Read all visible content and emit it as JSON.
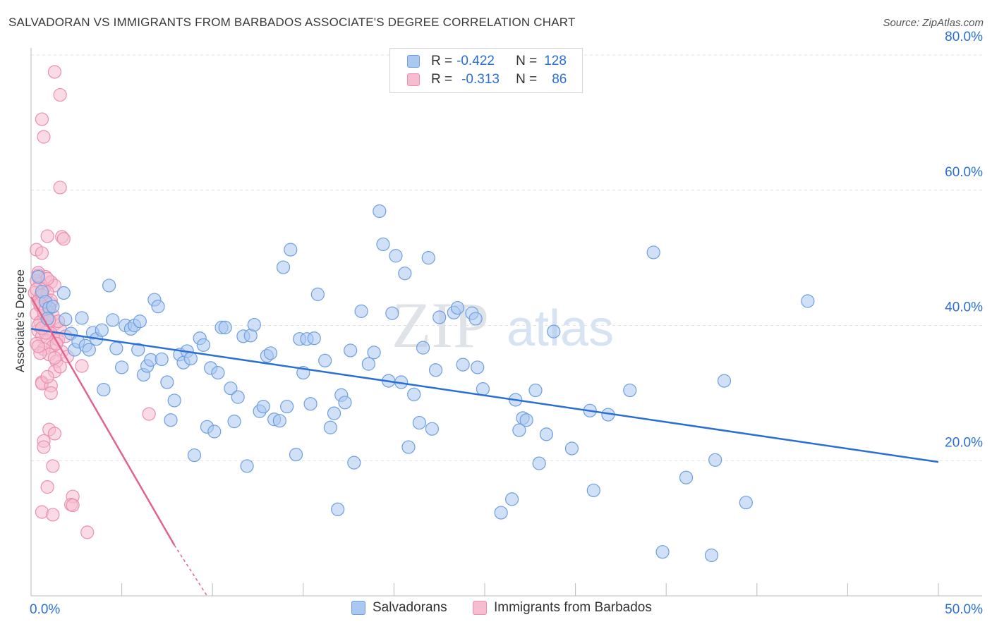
{
  "title": "SALVADORAN VS IMMIGRANTS FROM BARBADOS ASSOCIATE'S DEGREE CORRELATION CHART",
  "source": "Source: ZipAtlas.com",
  "watermark": {
    "zip": "ZIP",
    "atlas": "atlas"
  },
  "colors": {
    "blue_fill": "#aac8f0",
    "blue_stroke": "#6d9ee0",
    "blue_line": "#2a6fd4",
    "pink_fill": "#f6bdd0",
    "pink_stroke": "#ea8fb0",
    "pink_line": "#e0648f",
    "tick_text": "#2a6fd4",
    "grid": "#e2e2e2"
  },
  "legend": {
    "rows": [
      {
        "r_label": "R =",
        "r_value": "-0.422",
        "n_label": "N =",
        "n_value": "128"
      },
      {
        "r_label": "R =",
        "r_value": "-0.313",
        "n_label": "N =",
        "n_value": "86"
      }
    ]
  },
  "bottom_legend": {
    "series1": "Salvadorans",
    "series2": "Immigrants from Barbados"
  },
  "chart_data": {
    "type": "scatter",
    "title": "SALVADORAN VS IMMIGRANTS FROM BARBADOS ASSOCIATE'S DEGREE CORRELATION CHART",
    "xlabel": "",
    "ylabel": "Associate's Degree",
    "xlim": [
      0,
      50
    ],
    "ylim": [
      0,
      80
    ],
    "x_tick_labels": {
      "left": "0.0%",
      "right": "50.0%"
    },
    "y_ticks": [
      {
        "value": 20,
        "label": "20.0%"
      },
      {
        "value": 40,
        "label": "40.0%"
      },
      {
        "value": 60,
        "label": "60.0%"
      },
      {
        "value": 80,
        "label": "80.0%"
      }
    ],
    "series": [
      {
        "name": "Salvadorans",
        "r": -0.422,
        "n": 128,
        "trend": {
          "x0": 0,
          "y0": 39.5,
          "x1": 50,
          "y1": 19.8
        },
        "points": [
          [
            0.4,
            47.2
          ],
          [
            0.6,
            45.0
          ],
          [
            0.8,
            43.5
          ],
          [
            1.0,
            42.6
          ],
          [
            0.9,
            41.0
          ],
          [
            1.8,
            44.8
          ],
          [
            1.2,
            42.8
          ],
          [
            1.9,
            40.9
          ],
          [
            2.2,
            38.8
          ],
          [
            2.4,
            36.4
          ],
          [
            2.8,
            41.1
          ],
          [
            2.6,
            37.6
          ],
          [
            3.0,
            37.0
          ],
          [
            3.2,
            36.4
          ],
          [
            3.4,
            38.9
          ],
          [
            3.6,
            38.0
          ],
          [
            3.9,
            39.3
          ],
          [
            4.0,
            30.5
          ],
          [
            4.3,
            45.9
          ],
          [
            4.5,
            40.8
          ],
          [
            4.7,
            36.6
          ],
          [
            5.0,
            33.8
          ],
          [
            5.2,
            40.0
          ],
          [
            5.5,
            39.5
          ],
          [
            5.7,
            40.0
          ],
          [
            5.9,
            36.4
          ],
          [
            6.0,
            40.6
          ],
          [
            6.2,
            32.7
          ],
          [
            6.4,
            34.0
          ],
          [
            6.6,
            34.9
          ],
          [
            6.8,
            43.8
          ],
          [
            7.0,
            42.8
          ],
          [
            7.2,
            35.0
          ],
          [
            7.5,
            31.6
          ],
          [
            7.7,
            26.0
          ],
          [
            7.9,
            28.9
          ],
          [
            8.2,
            35.7
          ],
          [
            8.4,
            34.5
          ],
          [
            8.6,
            36.2
          ],
          [
            8.8,
            35.1
          ],
          [
            9.0,
            20.8
          ],
          [
            9.3,
            38.1
          ],
          [
            9.5,
            37.1
          ],
          [
            9.7,
            25.0
          ],
          [
            9.9,
            33.7
          ],
          [
            10.1,
            24.3
          ],
          [
            10.3,
            33.0
          ],
          [
            10.5,
            39.7
          ],
          [
            10.7,
            39.7
          ],
          [
            11.0,
            30.7
          ],
          [
            11.2,
            25.8
          ],
          [
            11.4,
            29.4
          ],
          [
            11.7,
            38.4
          ],
          [
            11.9,
            19.2
          ],
          [
            12.1,
            38.5
          ],
          [
            12.3,
            40.1
          ],
          [
            12.6,
            27.3
          ],
          [
            12.8,
            28.0
          ],
          [
            13.0,
            35.5
          ],
          [
            13.2,
            35.9
          ],
          [
            13.4,
            26.1
          ],
          [
            13.7,
            25.9
          ],
          [
            13.9,
            48.6
          ],
          [
            14.1,
            28.0
          ],
          [
            14.3,
            51.2
          ],
          [
            14.6,
            20.9
          ],
          [
            14.8,
            38.0
          ],
          [
            15.0,
            33.0
          ],
          [
            15.2,
            38.0
          ],
          [
            15.4,
            28.4
          ],
          [
            15.6,
            38.1
          ],
          [
            15.8,
            44.6
          ],
          [
            16.2,
            34.8
          ],
          [
            16.5,
            24.9
          ],
          [
            16.7,
            27.0
          ],
          [
            16.9,
            12.8
          ],
          [
            17.1,
            29.7
          ],
          [
            17.3,
            28.6
          ],
          [
            17.6,
            36.3
          ],
          [
            17.8,
            19.7
          ],
          [
            18.2,
            42.1
          ],
          [
            18.6,
            34.3
          ],
          [
            18.9,
            36.0
          ],
          [
            19.2,
            56.9
          ],
          [
            19.4,
            52.0
          ],
          [
            19.7,
            31.8
          ],
          [
            19.9,
            41.8
          ],
          [
            20.1,
            50.3
          ],
          [
            20.4,
            31.6
          ],
          [
            20.6,
            47.7
          ],
          [
            20.8,
            22.0
          ],
          [
            21.1,
            29.8
          ],
          [
            21.4,
            25.6
          ],
          [
            21.6,
            36.7
          ],
          [
            21.9,
            50.0
          ],
          [
            22.1,
            24.7
          ],
          [
            22.3,
            33.4
          ],
          [
            22.5,
            41.2
          ],
          [
            23.3,
            41.9
          ],
          [
            23.5,
            42.6
          ],
          [
            23.8,
            34.2
          ],
          [
            24.3,
            41.8
          ],
          [
            24.5,
            41.0
          ],
          [
            24.6,
            33.8
          ],
          [
            24.9,
            30.6
          ],
          [
            25.9,
            12.3
          ],
          [
            26.5,
            14.3
          ],
          [
            26.7,
            29.0
          ],
          [
            26.9,
            24.5
          ],
          [
            27.1,
            26.3
          ],
          [
            27.3,
            26.0
          ],
          [
            27.8,
            30.4
          ],
          [
            28.0,
            19.6
          ],
          [
            28.4,
            23.9
          ],
          [
            28.8,
            39.1
          ],
          [
            29.8,
            21.8
          ],
          [
            30.8,
            27.4
          ],
          [
            31.0,
            15.6
          ],
          [
            31.8,
            26.8
          ],
          [
            33.0,
            30.4
          ],
          [
            34.3,
            50.8
          ],
          [
            34.8,
            6.5
          ],
          [
            36.1,
            17.5
          ],
          [
            37.5,
            6.0
          ],
          [
            37.7,
            20.1
          ],
          [
            38.2,
            31.8
          ],
          [
            39.4,
            13.8
          ],
          [
            42.8,
            43.6
          ]
        ]
      },
      {
        "name": "Immigrants from Barbados",
        "r": -0.313,
        "n": 86,
        "trend": {
          "x0": 0,
          "y0": 44.2,
          "x1": 7.9,
          "y1": 7.5
        },
        "trend_dashed": {
          "x0": 7.9,
          "y0": 7.5,
          "x1": 9.7,
          "y1": 0
        },
        "points": [
          [
            1.3,
            77.5
          ],
          [
            1.6,
            74.1
          ],
          [
            0.6,
            70.5
          ],
          [
            0.7,
            67.9
          ],
          [
            1.6,
            60.4
          ],
          [
            0.9,
            53.2
          ],
          [
            1.7,
            53.1
          ],
          [
            1.8,
            52.8
          ],
          [
            0.3,
            51.2
          ],
          [
            0.6,
            50.7
          ],
          [
            0.4,
            47.8
          ],
          [
            0.8,
            47.2
          ],
          [
            0.3,
            46.6
          ],
          [
            1.1,
            46.4
          ],
          [
            0.5,
            46.2
          ],
          [
            1.3,
            45.9
          ],
          [
            0.7,
            45.4
          ],
          [
            0.2,
            44.8
          ],
          [
            0.5,
            44.3
          ],
          [
            0.8,
            43.9
          ],
          [
            0.4,
            43.6
          ],
          [
            1.1,
            43.2
          ],
          [
            0.6,
            42.7
          ],
          [
            0.9,
            42.1
          ],
          [
            0.3,
            41.7
          ],
          [
            0.7,
            41.2
          ],
          [
            1.0,
            40.9
          ],
          [
            0.5,
            40.5
          ],
          [
            1.3,
            40.2
          ],
          [
            0.8,
            39.8
          ],
          [
            1.6,
            39.5
          ],
          [
            0.4,
            39.2
          ],
          [
            1.1,
            38.8
          ],
          [
            0.6,
            38.4
          ],
          [
            1.4,
            38.1
          ],
          [
            0.9,
            37.7
          ],
          [
            0.3,
            37.3
          ],
          [
            1.2,
            36.9
          ],
          [
            0.7,
            36.5
          ],
          [
            1.7,
            36.1
          ],
          [
            1.0,
            35.7
          ],
          [
            1.4,
            34.7
          ],
          [
            2.8,
            34.0
          ],
          [
            1.3,
            33.2
          ],
          [
            0.6,
            31.6
          ],
          [
            0.6,
            31.4
          ],
          [
            1.1,
            31.1
          ],
          [
            1.1,
            30.0
          ],
          [
            6.5,
            26.9
          ],
          [
            1.0,
            24.6
          ],
          [
            1.3,
            24.0
          ],
          [
            0.7,
            22.9
          ],
          [
            0.7,
            22.0
          ],
          [
            1.2,
            19.2
          ],
          [
            0.9,
            16.1
          ],
          [
            2.3,
            14.7
          ],
          [
            2.2,
            13.5
          ],
          [
            2.3,
            13.4
          ],
          [
            0.6,
            12.4
          ],
          [
            1.2,
            12.0
          ],
          [
            3.1,
            9.4
          ],
          [
            0.4,
            47.4
          ],
          [
            0.9,
            44.9
          ],
          [
            0.5,
            42.9
          ],
          [
            1.2,
            41.5
          ],
          [
            0.4,
            40.0
          ],
          [
            0.8,
            38.9
          ],
          [
            1.5,
            37.9
          ],
          [
            0.5,
            35.9
          ],
          [
            2.0,
            35.4
          ],
          [
            1.6,
            33.9
          ],
          [
            0.9,
            32.4
          ],
          [
            1.1,
            43.7
          ],
          [
            0.3,
            45.3
          ],
          [
            0.7,
            41.9
          ],
          [
            1.5,
            40.6
          ],
          [
            0.6,
            39.6
          ],
          [
            1.9,
            38.4
          ],
          [
            0.4,
            36.9
          ],
          [
            1.3,
            35.2
          ],
          [
            0.9,
            46.9
          ],
          [
            0.6,
            44.5
          ],
          [
            1.0,
            40.7
          ],
          [
            0.5,
            43.2
          ],
          [
            1.4,
            37.3
          ],
          [
            0.8,
            42.4
          ]
        ]
      }
    ]
  }
}
